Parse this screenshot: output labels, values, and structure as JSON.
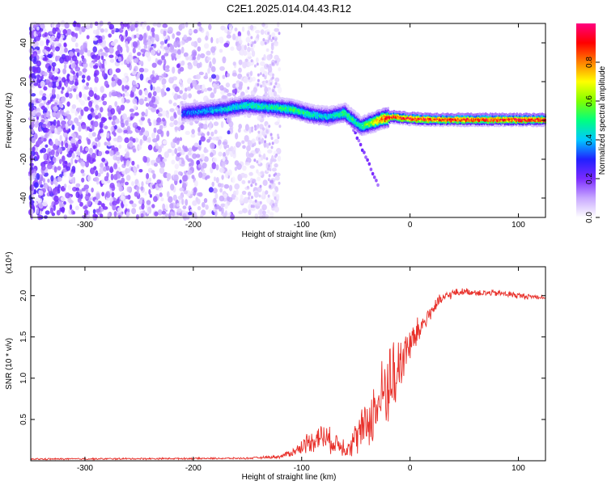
{
  "title": "C2E1.2025.014.04.43.R12",
  "chart_data": [
    {
      "type": "heatmap",
      "xlabel": "Height of straight line (km)",
      "ylabel": "Frequency (Hz)",
      "xlim": [
        -350,
        125
      ],
      "ylim": [
        -50,
        50
      ],
      "xticks": [
        -300,
        -200,
        -100,
        0,
        100
      ],
      "yticks": [
        -40,
        -20,
        0,
        20,
        40
      ],
      "colorbar": {
        "label": "Normalized spectral amplitude",
        "range": [
          0,
          1
        ],
        "ticks": [
          "0.0",
          "0.2",
          "0.4",
          "0.6",
          "0.8"
        ],
        "colors": [
          "#ffffff",
          "#c8a8ff",
          "#7b2bff",
          "#2020ff",
          "#00c8ff",
          "#00ff80",
          "#80ff00",
          "#ffff00",
          "#ff8000",
          "#ff0000",
          "#ff0080"
        ]
      },
      "ridge": {
        "x": [
          -210,
          -190,
          -170,
          -150,
          -130,
          -110,
          -90,
          -75,
          -60,
          -45,
          -35,
          -25,
          -15,
          0,
          25,
          50,
          75,
          100,
          125
        ],
        "freq": [
          4,
          5,
          6,
          8,
          7,
          6,
          3,
          2,
          4,
          -3,
          -1,
          1,
          2,
          1,
          0.5,
          0.5,
          0.5,
          0.5,
          0.5
        ],
        "peak_amplitude": [
          0.35,
          0.4,
          0.45,
          0.5,
          0.5,
          0.55,
          0.5,
          0.45,
          0.55,
          0.5,
          0.7,
          0.9,
          0.95,
          0.95,
          0.95,
          0.95,
          0.95,
          0.95,
          0.95
        ]
      },
      "noise_region": {
        "x": [
          -350,
          -140
        ],
        "freq": [
          -50,
          50
        ]
      }
    },
    {
      "type": "line",
      "xlabel": "Height of straight line (km)",
      "ylabel": "SNR (10 * v/v)",
      "y_multiplier": "(x10⁴)",
      "xlim": [
        -350,
        125
      ],
      "ylim": [
        0,
        2.35
      ],
      "xticks": [
        -300,
        -200,
        -100,
        0,
        100
      ],
      "yticks": [
        "0.5",
        "1.0",
        "1.5",
        "2.0"
      ],
      "ytick_values": [
        0.5,
        1.0,
        1.5,
        2.0
      ],
      "series": [
        {
          "color": "#e8302a",
          "x": [
            -350,
            -150,
            -120,
            -105,
            -95,
            -85,
            -80,
            -75,
            -70,
            -65,
            -60,
            -55,
            -50,
            -45,
            -40,
            -35,
            -30,
            -25,
            -20,
            -15,
            -10,
            -5,
            0,
            5,
            10,
            15,
            20,
            25,
            30,
            35,
            40,
            50,
            60,
            70,
            80,
            90,
            100,
            110,
            125
          ],
          "y": [
            0.02,
            0.03,
            0.05,
            0.12,
            0.22,
            0.28,
            0.3,
            0.25,
            0.22,
            0.2,
            0.16,
            0.2,
            0.28,
            0.35,
            0.45,
            0.55,
            0.65,
            0.8,
            0.95,
            1.05,
            1.2,
            1.3,
            1.4,
            1.5,
            1.62,
            1.72,
            1.82,
            1.9,
            1.96,
            2.0,
            2.03,
            2.05,
            2.04,
            2.03,
            2.03,
            2.02,
            2.0,
            1.99,
            1.98
          ],
          "noise_amplitude": [
            0.01,
            0.01,
            0.02,
            0.06,
            0.12,
            0.15,
            0.18,
            0.15,
            0.13,
            0.12,
            0.12,
            0.15,
            0.2,
            0.25,
            0.3,
            0.35,
            0.4,
            0.45,
            0.5,
            0.55,
            0.45,
            0.3,
            0.25,
            0.2,
            0.15,
            0.12,
            0.1,
            0.08,
            0.07,
            0.06,
            0.05,
            0.04,
            0.04,
            0.04,
            0.04,
            0.04,
            0.04,
            0.03,
            0.03
          ]
        }
      ]
    }
  ]
}
